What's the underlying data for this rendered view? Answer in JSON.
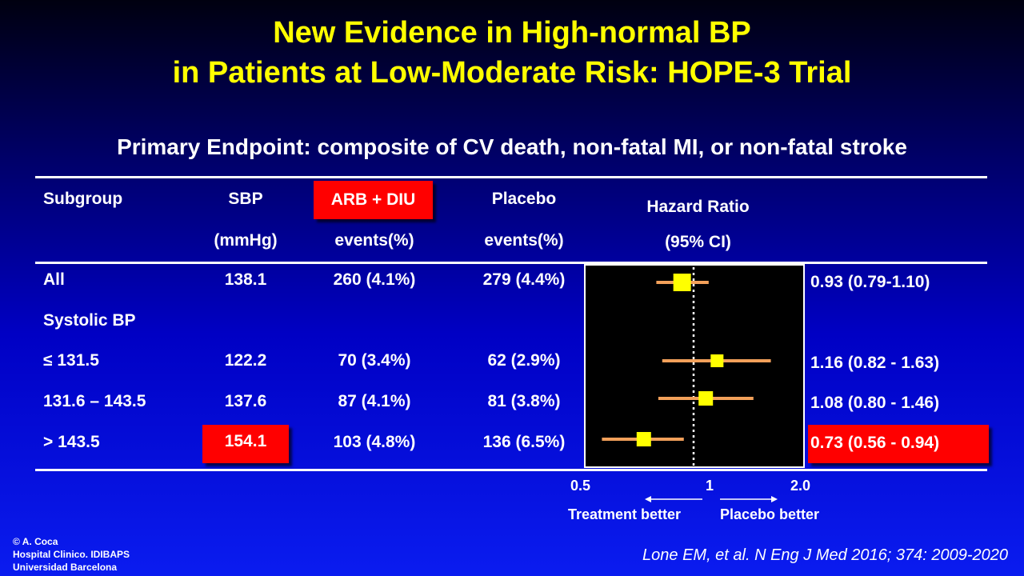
{
  "title": {
    "line1": "New Evidence in High-normal BP",
    "line2": "in Patients at Low-Moderate Risk: HOPE-3 Trial"
  },
  "subtitle": "Primary Endpoint: composite of CV death, non-fatal MI, or non-fatal stroke",
  "table": {
    "headers": {
      "subgroup": "Subgroup",
      "sbp_line1": "SBP",
      "sbp_line2": "(mmHg)",
      "arb_line1": "ARB + DIU",
      "arb_line2": "events(%)",
      "placebo_line1": "Placebo",
      "placebo_line2": "events(%)",
      "hr_line1": "Hazard Ratio",
      "hr_line2": "(95% CI)"
    },
    "rows": [
      {
        "subgroup": "All",
        "sbp": "138.1",
        "arb": "260 (4.1%)",
        "placebo": "279 (4.4%)",
        "hr_text": "0.93 (0.79-1.10)"
      },
      {
        "subgroup": "Systolic BP",
        "sbp": "",
        "arb": "",
        "placebo": "",
        "hr_text": ""
      },
      {
        "subgroup": "≤ 131.5",
        "sbp": "122.2",
        "arb": "70 (3.4%)",
        "placebo": "62 (2.9%)",
        "hr_text": "1.16 (0.82 - 1.63)"
      },
      {
        "subgroup": "131.6 – 143.5",
        "sbp": "137.6",
        "arb": "87 (4.1%)",
        "placebo": "81 (3.8%)",
        "hr_text": "1.08 (0.80 - 1.46)"
      },
      {
        "subgroup": "> 143.5",
        "sbp": "154.1",
        "arb": "103 (4.8%)",
        "placebo": "136 (6.5%)",
        "hr_text": "0.73 (0.56 - 0.94)"
      }
    ]
  },
  "chart_data": {
    "type": "forest",
    "x_ticks": [
      "0.5",
      "1",
      "2.0"
    ],
    "xlim": [
      0.5,
      2.0
    ],
    "x_scale": "log",
    "reference_line": 1,
    "left_label": "Treatment better",
    "right_label": "Placebo better",
    "points": [
      {
        "row": "All",
        "hr": 0.93,
        "lo": 0.79,
        "hi": 1.1
      },
      {
        "row": "≤ 131.5",
        "hr": 1.16,
        "lo": 0.82,
        "hi": 1.63
      },
      {
        "row": "131.6 – 143.5",
        "hr": 1.08,
        "lo": 0.8,
        "hi": 1.46
      },
      {
        "row": "> 143.5",
        "hr": 0.73,
        "lo": 0.56,
        "hi": 0.94
      }
    ]
  },
  "colors": {
    "title": "#ffff00",
    "highlight": "#ff0000",
    "ci_line": "#f2a05a",
    "marker": "#ffff00"
  },
  "footer": {
    "copyright": "© A. Coca",
    "institution1": "Hospital Clinico. IDIBAPS",
    "institution2": "Universidad Barcelona",
    "citation": "Lone EM, et al. N Eng J Med 2016; 374: 2009-2020"
  }
}
